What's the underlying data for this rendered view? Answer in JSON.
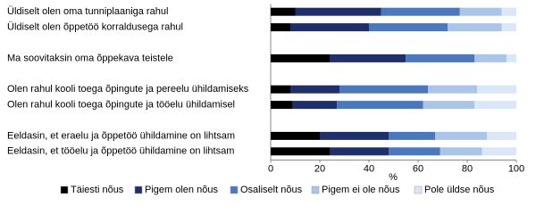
{
  "chart_data": {
    "type": "stacked-bar-horizontal",
    "categories": [
      "Üldiselt olen oma tunniplaaniga rahul",
      "Üldiselt olen õppetöö korraldusega rahul",
      null,
      "Ma soovitaksin oma õppekava teistele",
      null,
      "Olen rahul kooli toega õpingute ja pereelu ühildamiseks",
      "Olen rahul kooli toega õpingute ja tööelu ühildamisel",
      null,
      "Eeldasin, et eraelu ja õppetöö ühildamine on lihtsam",
      "Eeldasin, et tööelu ja õppetöö ühildamine on lihtsam"
    ],
    "series": [
      {
        "name": "Täiesti nõus",
        "color": "#000000",
        "values": [
          10,
          8,
          null,
          24,
          null,
          8,
          9,
          null,
          20,
          24
        ]
      },
      {
        "name": "Pigem olen nõus",
        "color": "#1f2f6b",
        "values": [
          35,
          32,
          null,
          31,
          null,
          20,
          18,
          null,
          28,
          24
        ]
      },
      {
        "name": "Osaliselt nõus",
        "color": "#4a78c0",
        "values": [
          32,
          32,
          null,
          28,
          null,
          36,
          35,
          null,
          19,
          21
        ]
      },
      {
        "name": "Pigem ei ole nõus",
        "color": "#a9c6ea",
        "values": [
          17,
          22,
          null,
          13,
          null,
          20,
          21,
          null,
          21,
          17
        ]
      },
      {
        "name": "Pole üldse nõus",
        "color": "#d9e7f6",
        "values": [
          6,
          6,
          null,
          4,
          null,
          16,
          17,
          null,
          12,
          14
        ]
      }
    ],
    "xlabel": "%",
    "xlim": [
      0,
      100
    ],
    "xticks": [
      0,
      20,
      40,
      60,
      80,
      100
    ]
  }
}
